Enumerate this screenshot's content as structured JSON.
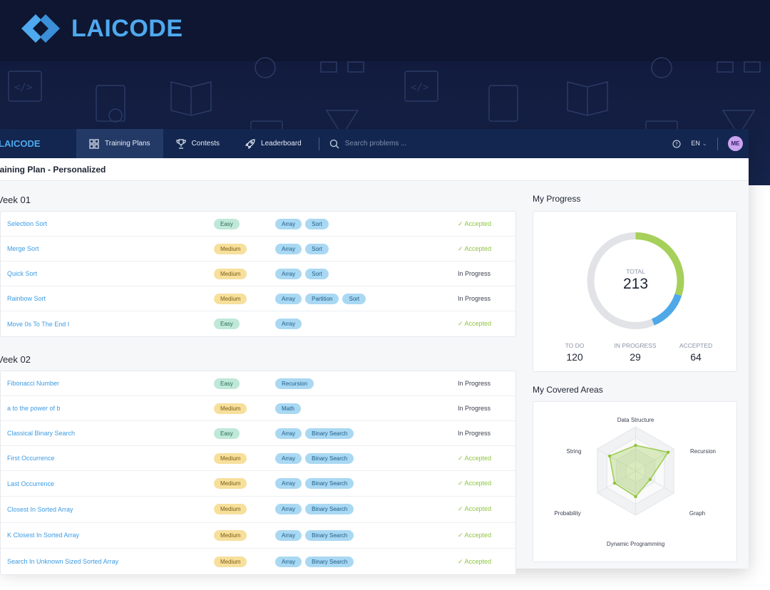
{
  "brand": {
    "name": "LAICODE"
  },
  "nav": {
    "brand": "LAICODE",
    "items": [
      {
        "label": "Training Plans",
        "icon": "grid-icon",
        "active": true
      },
      {
        "label": "Contests",
        "icon": "trophy-icon",
        "active": false
      },
      {
        "label": "Leaderboard",
        "icon": "rocket-icon",
        "active": false
      }
    ],
    "search_placeholder": "Search problems ...",
    "language": "EN",
    "avatar": "ME"
  },
  "page": {
    "title": "raining Plan  -  Personalized"
  },
  "weeks": [
    {
      "title": "Veek 01",
      "problems": [
        {
          "name": "Selection Sort",
          "difficulty": "Easy",
          "tags": [
            "Array",
            "Sort"
          ],
          "status": "✓ Accepted"
        },
        {
          "name": "Merge Sort",
          "difficulty": "Medium",
          "tags": [
            "Array",
            "Sort"
          ],
          "status": "✓ Accepted"
        },
        {
          "name": "Quick Sort",
          "difficulty": "Medium",
          "tags": [
            "Array",
            "Sort"
          ],
          "status": "In Progress"
        },
        {
          "name": "Rainbow Sort",
          "difficulty": "Medium",
          "tags": [
            "Array",
            "Partition",
            "Sort"
          ],
          "status": "In Progress"
        },
        {
          "name": "Move 0s To The End I",
          "difficulty": "Easy",
          "tags": [
            "Array"
          ],
          "status": "✓ Accepted"
        }
      ]
    },
    {
      "title": "Veek 02",
      "problems": [
        {
          "name": "Fibonacci Number",
          "difficulty": "Easy",
          "tags": [
            "Recursion"
          ],
          "status": "In Progress"
        },
        {
          "name": "a to the power of b",
          "difficulty": "Medium",
          "tags": [
            "Math"
          ],
          "status": "In Progress"
        },
        {
          "name": "Classical Binary Search",
          "difficulty": "Easy",
          "tags": [
            "Array",
            "Binary Search"
          ],
          "status": "In Progress"
        },
        {
          "name": "First Occurrence",
          "difficulty": "Medium",
          "tags": [
            "Array",
            "Binary Search"
          ],
          "status": "✓ Accepted"
        },
        {
          "name": "Last Occurrence",
          "difficulty": "Medium",
          "tags": [
            "Array",
            "Binary Search"
          ],
          "status": "✓ Accepted"
        },
        {
          "name": "Closest In Sorted Array",
          "difficulty": "Medium",
          "tags": [
            "Array",
            "Binary Search"
          ],
          "status": "✓ Accepted"
        },
        {
          "name": "K Closest In Sorted Array",
          "difficulty": "Medium",
          "tags": [
            "Array",
            "Binary Search"
          ],
          "status": "✓ Accepted"
        },
        {
          "name": "Search In Unknown Sized Sorted Array",
          "difficulty": "Medium",
          "tags": [
            "Array",
            "Binary Search"
          ],
          "status": "✓ Accepted"
        }
      ]
    }
  ],
  "progress": {
    "title": "My Progress",
    "total_label": "TOTAL",
    "total": 213,
    "stats": [
      {
        "label": "TO DO",
        "value": 120,
        "color": "#e1e3e6"
      },
      {
        "label": "IN PROGRESS",
        "value": 29,
        "color": "#4fa8e8"
      },
      {
        "label": "ACCEPTED",
        "value": 64,
        "color": "#a6d05a"
      }
    ]
  },
  "areas": {
    "title": "My Covered Areas",
    "axes": [
      "Data Structure",
      "Recursion",
      "Graph",
      "Dynamic Programming",
      "Probability",
      "String"
    ],
    "levels": [
      0.58,
      0.85,
      0.38,
      0.58,
      0.55,
      0.68
    ],
    "color": "#9ccc4f"
  },
  "colors": {
    "accent": "#3d9be3",
    "accepted": "#8cc63e",
    "nav": "#13264f"
  }
}
